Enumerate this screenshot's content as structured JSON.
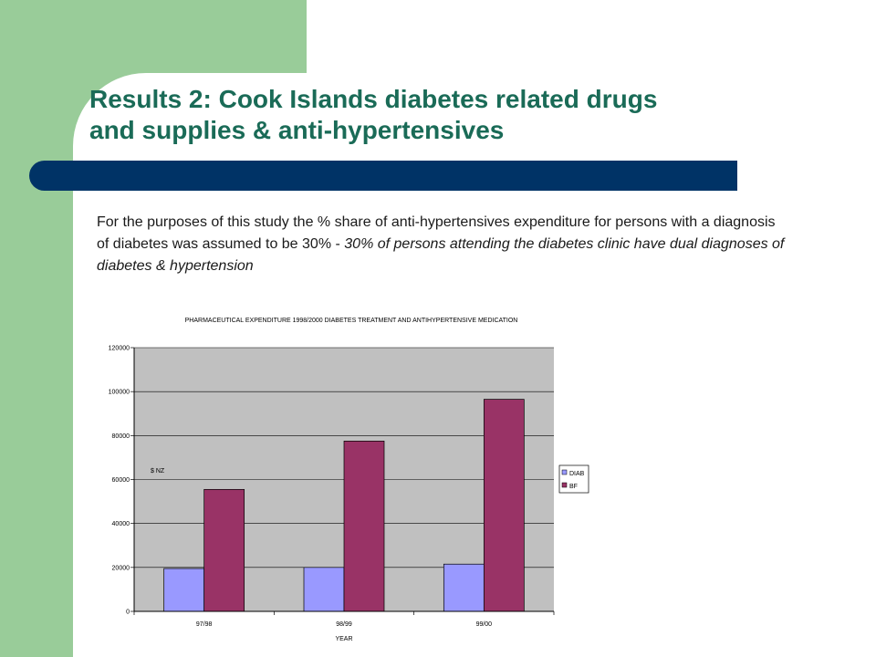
{
  "colors": {
    "green_band": "#99cc99",
    "title_text": "#1a6b57",
    "blue_bar": "#003366",
    "plot_bg": "#c0c0c0",
    "series_diab": "#9999ff",
    "series_bf": "#993366"
  },
  "slide": {
    "title_line1": "Results 2: Cook Islands diabetes related drugs",
    "title_line2": "and supplies & anti-hypertensives",
    "body_plain": "For the purposes of this study the % share of anti-hypertensives expenditure for persons with a diagnosis of diabetes was assumed to be 30% - ",
    "body_italic": "30% of persons attending the diabetes clinic have dual diagnoses of diabetes & hypertension"
  },
  "chart_data": {
    "type": "bar",
    "title": "PHARMACEUTICAL EXPENDITURE 1998/2000 DIABETES TREATMENT AND ANTIHYPERTENSIVE MEDICATION",
    "xlabel": "YEAR",
    "ylabel": "$ NZ",
    "categories": [
      "97/98",
      "98/99",
      "99/00"
    ],
    "series": [
      {
        "name": "DIAB",
        "values": [
          19500,
          20000,
          21500
        ]
      },
      {
        "name": "BF",
        "values": [
          55500,
          77500,
          96500
        ]
      }
    ],
    "ylim": [
      0,
      120000
    ],
    "yticks": [
      0,
      20000,
      40000,
      60000,
      80000,
      100000,
      120000
    ],
    "ytick_labels": [
      "0",
      "20000",
      "40000",
      "60000",
      "80000",
      "100000",
      "120000"
    ],
    "grid": true,
    "legend_position": "right"
  }
}
